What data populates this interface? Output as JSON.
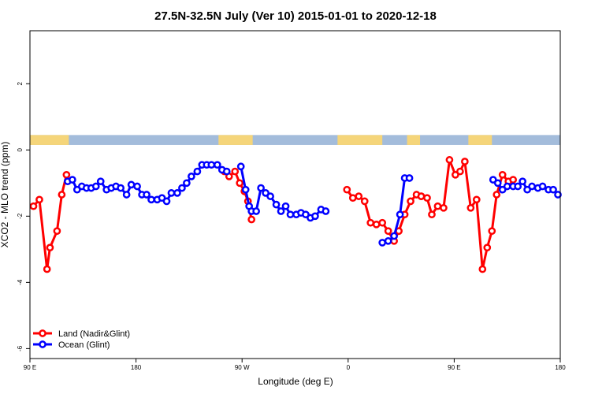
{
  "chart_data": {
    "type": "line",
    "title": "27.5N-32.5N July (Ver 10)   2015-01-01 to 2020-12-18",
    "xlabel": "Longitude (deg E)",
    "ylabel": "XCO2 - MLO trend (ppm)",
    "x_axis": {
      "min": 90,
      "max": 450,
      "ticks": [
        {
          "value": 90,
          "label": "90 E"
        },
        {
          "value": 180,
          "label": "180"
        },
        {
          "value": 270,
          "label": "90 W"
        },
        {
          "value": 360,
          "label": "0"
        },
        {
          "value": 450,
          "label": "90 E"
        },
        {
          "value": 540,
          "label": "180"
        }
      ],
      "range": [
        90,
        540
      ]
    },
    "ylim": [
      -6.3,
      3.6
    ],
    "y_ticks": [
      {
        "value": 2,
        "label": "2"
      },
      {
        "value": 0,
        "label": "0"
      },
      {
        "value": -2,
        "label": "-2"
      },
      {
        "value": -4,
        "label": "-4"
      },
      {
        "value": -6,
        "label": "-6"
      }
    ],
    "grid": false,
    "legend_position": "bottom-left",
    "land_strip": {
      "y_range": [
        0.15,
        0.45
      ],
      "ocean_color": "#A3BCDB",
      "land_color": "#F5D57A",
      "land_segments": [
        [
          90,
          123
        ],
        [
          250,
          279
        ],
        [
          351,
          389
        ],
        [
          410,
          421
        ],
        [
          462,
          482
        ]
      ]
    },
    "series": [
      {
        "name": "Land (Nadir&Glint)",
        "color": "#FF0000",
        "segments": [
          {
            "x": [
              93,
              98,
              104.5,
              107,
              113,
              117,
              121
            ],
            "y": [
              -1.7,
              -1.5,
              -3.6,
              -2.95,
              -2.45,
              -1.35,
              -0.75
            ]
          },
          {
            "x": [
              255,
              259,
              264,
              268,
              272,
              275,
              278
            ],
            "y": [
              -0.65,
              -0.8,
              -0.65,
              -1.0,
              -1.25,
              -1.55,
              -2.1
            ]
          },
          {
            "x": [
              359,
              364,
              369,
              374,
              379,
              384,
              389,
              394,
              399,
              403,
              408,
              413,
              418,
              422
            ],
            "y": [
              -1.2,
              -1.45,
              -1.4,
              -1.55,
              -2.2,
              -2.25,
              -2.2,
              -2.45,
              -2.75,
              -2.45,
              -1.95,
              -1.55,
              -1.35,
              -1.4
            ]
          },
          {
            "x": [
              422,
              427,
              431,
              436,
              441,
              446,
              451,
              455,
              459,
              464,
              469,
              474,
              478,
              482,
              486,
              491,
              496,
              500
            ],
            "y": [
              -1.4,
              -1.45,
              -1.95,
              -1.7,
              -1.75,
              -0.3,
              -0.75,
              -0.65,
              -0.35,
              -1.75,
              -1.5,
              -3.6,
              -2.95,
              -2.45,
              -1.35,
              -0.75,
              -0.95,
              -0.9
            ]
          }
        ]
      },
      {
        "name": "Ocean (Glint)",
        "color": "#0000FF",
        "segments": [
          {
            "x": [
              122,
              126,
              130,
              134,
              138,
              142,
              146,
              150,
              155,
              159,
              163,
              167,
              172,
              176,
              181,
              185,
              189,
              193,
              198,
              202,
              206,
              210,
              215,
              219,
              223,
              227,
              232,
              236,
              240,
              244,
              249,
              253,
              257
            ],
            "y": [
              -0.95,
              -0.9,
              -1.2,
              -1.1,
              -1.15,
              -1.15,
              -1.1,
              -0.95,
              -1.2,
              -1.15,
              -1.1,
              -1.15,
              -1.35,
              -1.05,
              -1.1,
              -1.35,
              -1.35,
              -1.5,
              -1.5,
              -1.45,
              -1.55,
              -1.3,
              -1.3,
              -1.15,
              -1.0,
              -0.8,
              -0.65,
              -0.45,
              -0.45,
              -0.45,
              -0.45,
              -0.6,
              -0.65
            ]
          },
          {
            "x": [
              269,
              273,
              276,
              278,
              282,
              286,
              290,
              294,
              299,
              303,
              307,
              311,
              316,
              320,
              324,
              328,
              332,
              337,
              341
            ],
            "y": [
              -0.5,
              -1.2,
              -1.7,
              -1.85,
              -1.85,
              -1.15,
              -1.3,
              -1.4,
              -1.65,
              -1.85,
              -1.7,
              -1.95,
              -1.95,
              -1.9,
              -1.95,
              -2.05,
              -2.0,
              -1.8,
              -1.85
            ]
          },
          {
            "x": [
              389,
              394,
              399,
              404,
              408,
              412
            ],
            "y": [
              -2.8,
              -2.75,
              -2.6,
              -1.95,
              -0.85,
              -0.85
            ]
          },
          {
            "x": [
              483,
              487,
              491,
              495,
              500,
              504,
              508,
              512,
              516,
              521,
              525,
              530,
              534,
              538
            ],
            "y": [
              -0.9,
              -1.0,
              -1.2,
              -1.1,
              -1.1,
              -1.1,
              -0.95,
              -1.2,
              -1.1,
              -1.15,
              -1.1,
              -1.2,
              -1.2,
              -1.35
            ]
          }
        ]
      }
    ]
  }
}
